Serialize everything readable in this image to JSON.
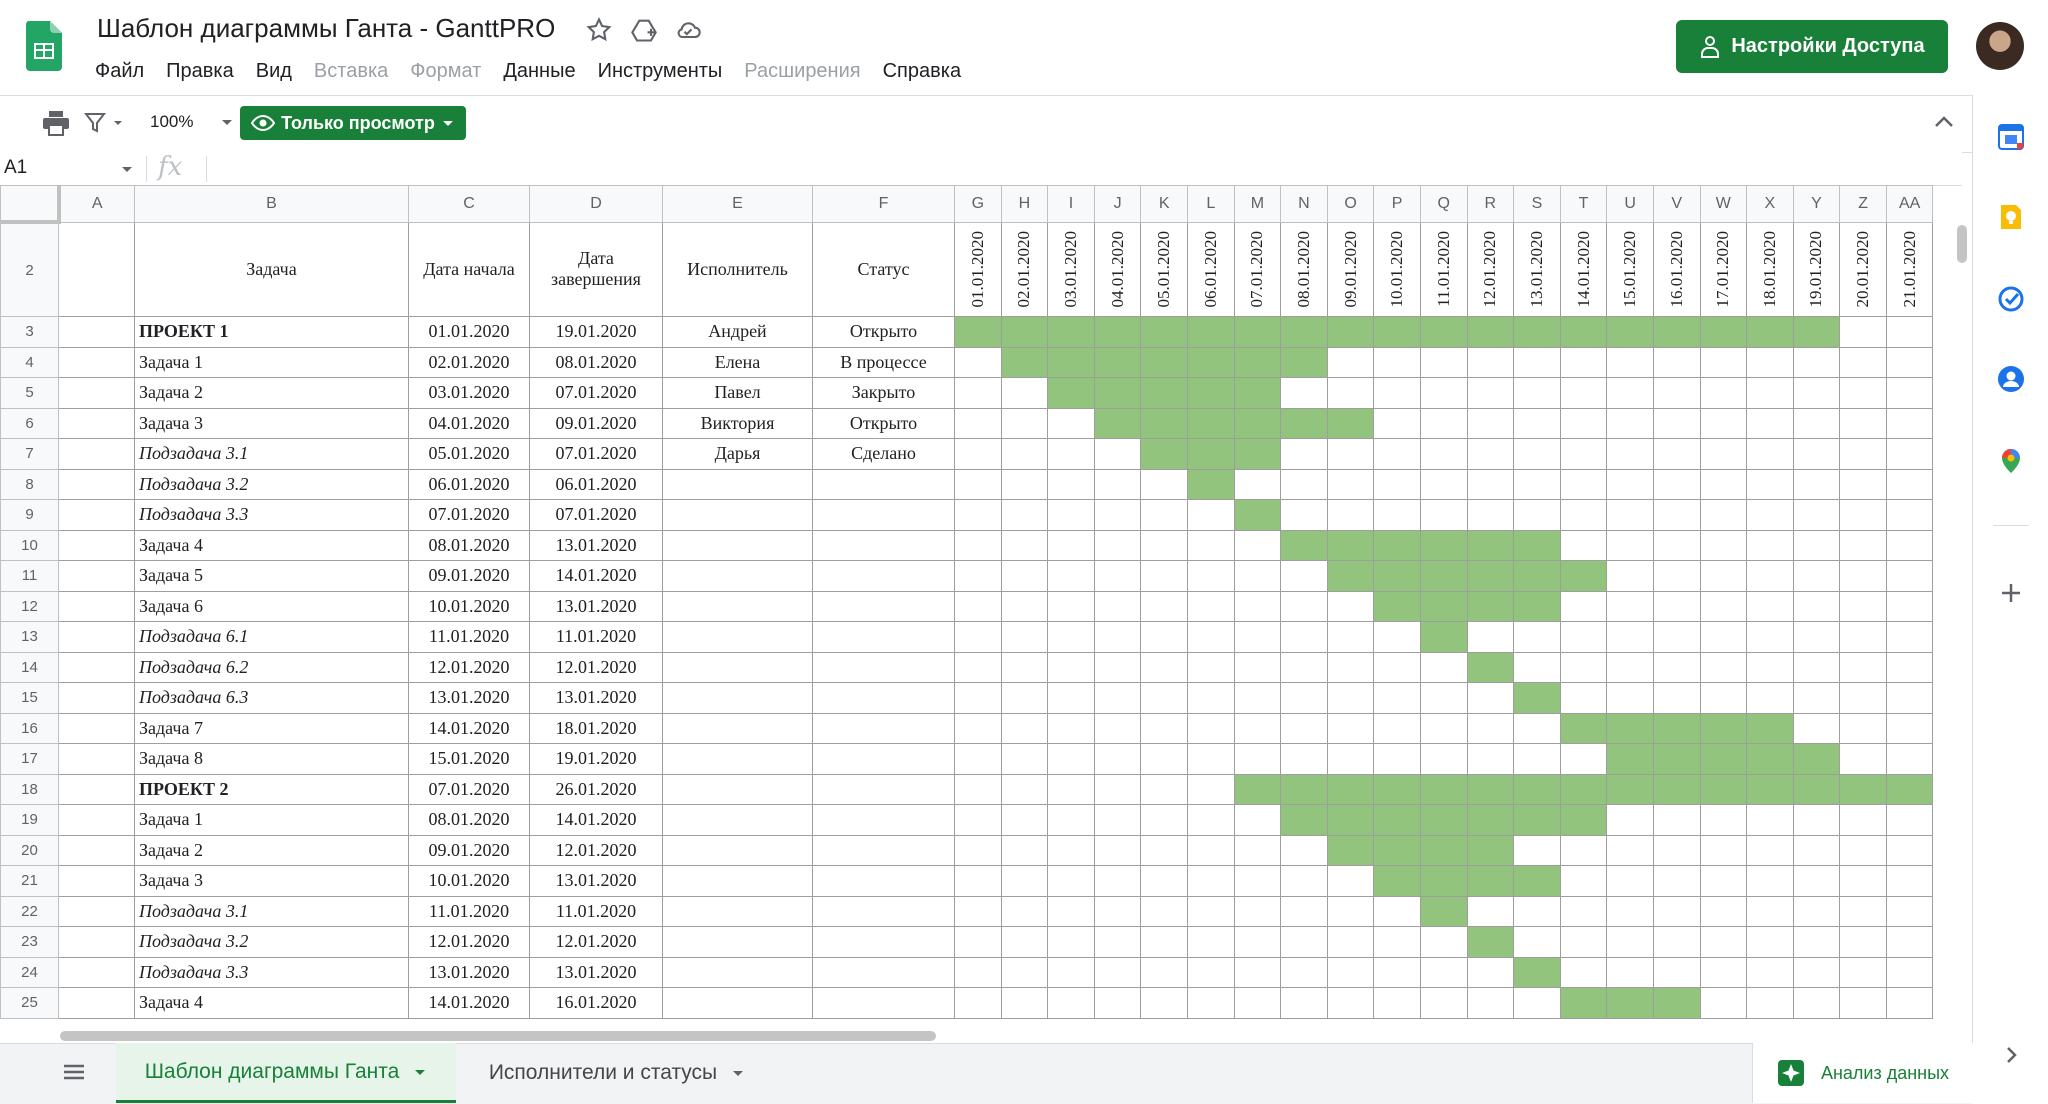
{
  "header": {
    "title": "Шаблон диаграммы Ганта - GanttPRO",
    "menu": [
      {
        "label": "Файл",
        "disabled": false
      },
      {
        "label": "Правка",
        "disabled": false
      },
      {
        "label": "Вид",
        "disabled": false
      },
      {
        "label": "Вставка",
        "disabled": true
      },
      {
        "label": "Формат",
        "disabled": true
      },
      {
        "label": "Данные",
        "disabled": false
      },
      {
        "label": "Инструменты",
        "disabled": false
      },
      {
        "label": "Расширения",
        "disabled": true
      },
      {
        "label": "Справка",
        "disabled": false
      }
    ],
    "share_label": "Настройки Доступа"
  },
  "toolbar": {
    "zoom": "100%",
    "view_mode": "Только просмотр"
  },
  "formula_bar": {
    "cell_ref": "A1",
    "fx": "fx",
    "value": ""
  },
  "grid": {
    "columns": [
      "A",
      "B",
      "C",
      "D",
      "E",
      "F",
      "G",
      "H",
      "I",
      "J",
      "K",
      "L",
      "M",
      "N",
      "O",
      "P",
      "Q",
      "R",
      "S",
      "T",
      "U",
      "V",
      "W",
      "X",
      "Y",
      "Z",
      "AA"
    ],
    "headers": {
      "task": "Задача",
      "start": "Дата начала",
      "end": "Дата завершения",
      "assignee": "Исполнитель",
      "status": "Статус"
    },
    "dates": [
      "01.01.2020",
      "02.01.2020",
      "03.01.2020",
      "04.01.2020",
      "05.01.2020",
      "06.01.2020",
      "07.01.2020",
      "08.01.2020",
      "09.01.2020",
      "10.01.2020",
      "11.01.2020",
      "12.01.2020",
      "13.01.2020",
      "14.01.2020",
      "15.01.2020",
      "16.01.2020",
      "17.01.2020",
      "18.01.2020",
      "19.01.2020",
      "20.01.2020",
      "21.01.2020"
    ],
    "rows": [
      {
        "n": "3",
        "task": "ПРОЕКТ 1",
        "style": "bold",
        "start": "01.01.2020",
        "end": "19.01.2020",
        "assignee": "Андрей",
        "status": "Открыто"
      },
      {
        "n": "4",
        "task": "Задача 1",
        "style": "normal",
        "start": "02.01.2020",
        "end": "08.01.2020",
        "assignee": "Елена",
        "status": "В процессе"
      },
      {
        "n": "5",
        "task": "Задача 2",
        "style": "normal",
        "start": "03.01.2020",
        "end": "07.01.2020",
        "assignee": "Павел",
        "status": "Закрыто"
      },
      {
        "n": "6",
        "task": "Задача 3",
        "style": "normal",
        "start": "04.01.2020",
        "end": "09.01.2020",
        "assignee": "Виктория",
        "status": "Открыто"
      },
      {
        "n": "7",
        "task": "Подзадача 3.1",
        "style": "italic",
        "start": "05.01.2020",
        "end": "07.01.2020",
        "assignee": "Дарья",
        "status": "Сделано"
      },
      {
        "n": "8",
        "task": "Подзадача 3.2",
        "style": "italic",
        "start": "06.01.2020",
        "end": "06.01.2020",
        "assignee": "",
        "status": ""
      },
      {
        "n": "9",
        "task": "Подзадача 3.3",
        "style": "italic",
        "start": "07.01.2020",
        "end": "07.01.2020",
        "assignee": "",
        "status": ""
      },
      {
        "n": "10",
        "task": "Задача 4",
        "style": "normal",
        "start": "08.01.2020",
        "end": "13.01.2020",
        "assignee": "",
        "status": ""
      },
      {
        "n": "11",
        "task": "Задача 5",
        "style": "normal",
        "start": "09.01.2020",
        "end": "14.01.2020",
        "assignee": "",
        "status": ""
      },
      {
        "n": "12",
        "task": "Задача 6",
        "style": "normal",
        "start": "10.01.2020",
        "end": "13.01.2020",
        "assignee": "",
        "status": ""
      },
      {
        "n": "13",
        "task": "Подзадача 6.1",
        "style": "italic",
        "start": "11.01.2020",
        "end": "11.01.2020",
        "assignee": "",
        "status": ""
      },
      {
        "n": "14",
        "task": "Подзадача 6.2",
        "style": "italic",
        "start": "12.01.2020",
        "end": "12.01.2020",
        "assignee": "",
        "status": ""
      },
      {
        "n": "15",
        "task": "Подзадача 6.3",
        "style": "italic",
        "start": "13.01.2020",
        "end": "13.01.2020",
        "assignee": "",
        "status": ""
      },
      {
        "n": "16",
        "task": "Задача 7",
        "style": "normal",
        "start": "14.01.2020",
        "end": "18.01.2020",
        "assignee": "",
        "status": ""
      },
      {
        "n": "17",
        "task": "Задача 8",
        "style": "normal",
        "start": "15.01.2020",
        "end": "19.01.2020",
        "assignee": "",
        "status": ""
      },
      {
        "n": "18",
        "task": "ПРОЕКТ 2",
        "style": "bold",
        "start": "07.01.2020",
        "end": "26.01.2020",
        "assignee": "",
        "status": ""
      },
      {
        "n": "19",
        "task": "Задача 1",
        "style": "normal",
        "start": "08.01.2020",
        "end": "14.01.2020",
        "assignee": "",
        "status": ""
      },
      {
        "n": "20",
        "task": "Задача 2",
        "style": "normal",
        "start": "09.01.2020",
        "end": "12.01.2020",
        "assignee": "",
        "status": ""
      },
      {
        "n": "21",
        "task": "Задача 3",
        "style": "normal",
        "start": "10.01.2020",
        "end": "13.01.2020",
        "assignee": "",
        "status": ""
      },
      {
        "n": "22",
        "task": "Подзадача 3.1",
        "style": "italic",
        "start": "11.01.2020",
        "end": "11.01.2020",
        "assignee": "",
        "status": ""
      },
      {
        "n": "23",
        "task": "Подзадача 3.2",
        "style": "italic",
        "start": "12.01.2020",
        "end": "12.01.2020",
        "assignee": "",
        "status": ""
      },
      {
        "n": "24",
        "task": "Подзадача 3.3",
        "style": "italic",
        "start": "13.01.2020",
        "end": "13.01.2020",
        "assignee": "",
        "status": ""
      },
      {
        "n": "25",
        "task": "Задача 4",
        "style": "normal",
        "start": "14.01.2020",
        "end": "16.01.2020",
        "assignee": "",
        "status": ""
      }
    ]
  },
  "sheets": {
    "active": "Шаблон диаграммы Ганта",
    "second": "Исполнители и статусы",
    "explore": "Анализ данных"
  },
  "colors": {
    "brand_green": "#188038",
    "gantt_bar": "#93c47d"
  },
  "icons": [
    "sheets-logo",
    "star-icon",
    "move-to-drive-icon",
    "cloud-status-icon",
    "lock-person-icon",
    "print-icon",
    "filter-icon",
    "eye-icon",
    "caret-down-icon",
    "collapse-icon",
    "calendar-icon",
    "keep-icon",
    "tasks-icon",
    "contacts-icon",
    "maps-icon",
    "add-icon",
    "sheets-list-icon",
    "explore-icon",
    "chevron-right-icon"
  ]
}
